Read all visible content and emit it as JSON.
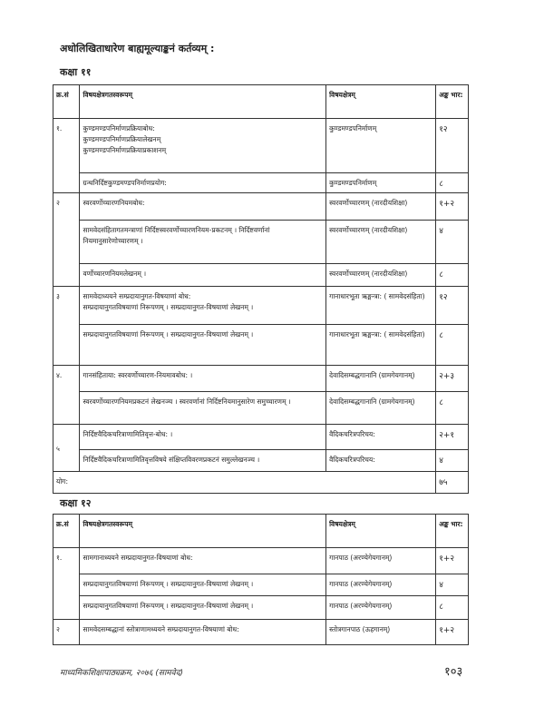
{
  "title": "अधोलिखिताधारेण बाह्यमूल्याङ्कनं कर्तव्यम् :",
  "headers": [
    "क्र.सं",
    "विषयक्षेत्रगतस्वरूपम्",
    "विषयक्षेत्रम्",
    "अङ्क भार:"
  ],
  "class11": {
    "heading": "कक्षा ११",
    "rows": [
      {
        "sn": "१.",
        "content": [
          "कुण्डमण्डपनिर्माणप्रक्रियाबोध:",
          "कुण्डमण्डपनिर्माणप्रक्रियालेखनम्",
          "कुण्डमण्डपनिर्माणप्रक्रियाप्रकाशनम्"
        ],
        "area": "कुण्डमण्डपनिर्माणम्",
        "marks": "१२"
      },
      {
        "sn": "",
        "content": [
          "ग्रन्थनिर्दिष्टकुण्डमण्डपनिर्माणप्रयोग:"
        ],
        "area": "कुण्डमण्डपनिर्माणम्",
        "marks": "८"
      },
      {
        "sn": "२",
        "content": [
          "स्वरवर्णोच्चारणनियमबोध:"
        ],
        "area": "स्वरवर्णोच्चारणम् (नारदीयशिक्षा)",
        "marks": "१+२"
      },
      {
        "sn": "",
        "content": [
          "सामवेदसंहितागतमन्त्राणां निर्दिष्टस्वरवर्णोच्चारणनियम-प्रकटनम् । निर्दिष्टवर्णानां नियमानुसारेणोच्चारणम् ।"
        ],
        "area": "स्वरवर्णोच्चारणम् (नारदीयशिक्षा)",
        "marks": "४"
      },
      {
        "sn": "",
        "content": [
          "वर्णोच्चारणनियमलेखनम् ।"
        ],
        "area": "स्वरवर्णोच्चारणम् (नारदीयशिक्षा)",
        "marks": "८"
      },
      {
        "sn": "३",
        "content": [
          "सामवेदाध्ययने सम्प्रदायानुगत-विषयाणां बोध:",
          "सम्प्रदायानुगतविषयाणां निरूपणम् । सम्प्रदायानुगत-विषयाणां लेखनम् ।"
        ],
        "area": "गानाधारभूता ऋङ्मन्त्रा: ( सामवेदसंहिता)",
        "marks": "१२"
      },
      {
        "sn": "",
        "content": [
          "सम्प्रदायानुगतविषयाणां निरूपणम् । सम्प्रदायानुगत-विषयाणां लेखनम् ।"
        ],
        "area": "गानाधारभूता ऋङ्मन्त्रा: ( सामवेदसंहिता)",
        "marks": "८"
      },
      {
        "sn": "४.",
        "content": [
          "गानसंहिताया: स्वरवर्णोच्चारण-नियमावबोध: ।"
        ],
        "area": "देवादिसम्बद्धगानानि (ग्रामगेयगानम्)",
        "marks": "२+३"
      },
      {
        "sn": "",
        "content": [
          "स्वरवर्णोच्चारणनियमप्रकटनं लेखनञ्च । स्वरवर्णानां निर्दिष्टनियमानुसारेण समुच्चारणम् ।"
        ],
        "area": "देवादिसम्बद्धगानानि (ग्रामगेयगानम्)",
        "marks": "८"
      },
      {
        "sn": "५",
        "content": [
          "निर्दिष्टवैदिकचरित्राणामितिवृत्त-बोध: ।"
        ],
        "area": "वैदिकचरित्रपरिचय:",
        "marks": "२+१"
      },
      {
        "sn": "",
        "content": [
          "निर्दिष्टवैदिकचरित्राणामितिवृत्तविषये संक्षिप्तविवरणप्रकटनं समुल्लेखनञ्च ।"
        ],
        "area": "वैदिकचरित्रपरिचय:",
        "marks": "४"
      }
    ],
    "total_label": "योग:",
    "total": "७५"
  },
  "class12": {
    "heading": "कक्षा १२",
    "rows": [
      {
        "sn": "१.",
        "content": [
          "सामगानाध्ययने सम्प्रदायानुगत-विषयाणां बोध:"
        ],
        "area": "गानपाठ (अरण्येगेयगानम्)",
        "marks": "१+२"
      },
      {
        "sn": "",
        "content": [
          "सम्प्रदायानुगतविषयाणां निरूपणम् । सम्प्रदायानुगत-विषयाणां लेखनम् ।"
        ],
        "area": "गानपाठ (अरण्येगेयगानम्)",
        "marks": "४"
      },
      {
        "sn": "",
        "content": [
          "सम्प्रदायानुगतविषयाणां निरूपणम् । सम्प्रदायानुगत-विषयाणां लेखनम् ।"
        ],
        "area": "गानपाठ (अरण्येगेयगानम्)",
        "marks": "८"
      },
      {
        "sn": "२",
        "content": [
          "सामवेदसम्बद्धानां स्तोत्राणामध्ययने सम्प्रदायानुगत-विषयाणां बोध:"
        ],
        "area": "स्तोत्रगानपाठ (ऊहगानम्)",
        "marks": "१+२"
      }
    ]
  },
  "footer": {
    "left": "माध्यमिकशिक्षापाठ्यक्रम, २०७६ (सामवेद)",
    "page": "१०३"
  }
}
